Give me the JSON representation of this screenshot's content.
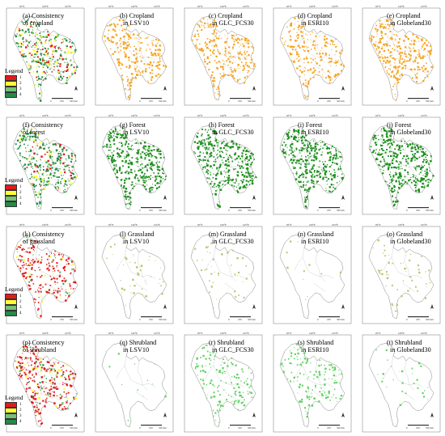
{
  "panels": [
    {
      "id": "a",
      "line1": "(a) Consistency",
      "line2": "of cropland",
      "type": "consistency",
      "class": "cropland"
    },
    {
      "id": "b",
      "line1": "(b) Cropland",
      "line2": "in LSV10",
      "type": "single",
      "class": "cropland"
    },
    {
      "id": "c",
      "line1": "(c) Cropland",
      "line2": "in GLC_FCS30",
      "type": "single",
      "class": "cropland"
    },
    {
      "id": "d",
      "line1": "(d) Cropland",
      "line2": "in ESRI10",
      "type": "single",
      "class": "cropland"
    },
    {
      "id": "e",
      "line1": "(e) Cropland",
      "line2": "in Globeland30",
      "type": "single",
      "class": "cropland"
    },
    {
      "id": "f",
      "line1": "(f) Consistency",
      "line2": "of forest",
      "type": "consistency",
      "class": "forest"
    },
    {
      "id": "g",
      "line1": "(g) Forest",
      "line2": "in LSV10",
      "type": "single",
      "class": "forest"
    },
    {
      "id": "h",
      "line1": "(h) Forest",
      "line2": "in GLC_FCS30",
      "type": "single",
      "class": "forest"
    },
    {
      "id": "i",
      "line1": "(i) Forest",
      "line2": "in ESRI10",
      "type": "single",
      "class": "forest"
    },
    {
      "id": "j",
      "line1": "(j) Forest",
      "line2": "in Globeland30",
      "type": "single",
      "class": "forest"
    },
    {
      "id": "k",
      "line1": "(k) Consistency",
      "line2": "of grassland",
      "type": "consistency",
      "class": "grassland"
    },
    {
      "id": "l",
      "line1": "(l) Grassland",
      "line2": "in LSV10",
      "type": "single",
      "class": "grassland"
    },
    {
      "id": "m",
      "line1": "(m) Grassland",
      "line2": "in GLC_FCS30",
      "type": "single",
      "class": "grassland"
    },
    {
      "id": "n",
      "line1": "(n) Grassland",
      "line2": "in ESRI10",
      "type": "single",
      "class": "grassland"
    },
    {
      "id": "o",
      "line1": "(o) Grassland",
      "line2": "in Globeland30",
      "type": "single",
      "class": "grassland"
    },
    {
      "id": "p",
      "line1": "(p) Consistency",
      "line2": "of shrubland",
      "type": "consistency",
      "class": "shrubland"
    },
    {
      "id": "q",
      "line1": "(q) Shrubland",
      "line2": "in LSV10",
      "type": "single",
      "class": "shrubland"
    },
    {
      "id": "r",
      "line1": "(r) Shrubland",
      "line2": "in GLC_FCS30",
      "type": "single",
      "class": "shrubland"
    },
    {
      "id": "s",
      "line1": "(s) Shrubland",
      "line2": "in ESRI10",
      "type": "single",
      "class": "shrubland"
    },
    {
      "id": "t",
      "line1": "(t) Shrubland",
      "line2": "in Globeland30",
      "type": "single",
      "class": "shrubland"
    }
  ],
  "density": {
    "a": 0.9,
    "b": 0.55,
    "c": 0.6,
    "d": 0.5,
    "e": 0.65,
    "f": 0.9,
    "g": 0.85,
    "h": 0.9,
    "i": 0.85,
    "j": 0.9,
    "k": 0.55,
    "l": 0.12,
    "m": 0.1,
    "n": 0.02,
    "o": 0.1,
    "p": 0.75,
    "q": 0.03,
    "r": 0.35,
    "s": 0.3,
    "t": 0.06
  },
  "legend": {
    "title": "Legend",
    "entries": [
      {
        "label": "1",
        "color": "#e31a1c"
      },
      {
        "label": "2",
        "color": "#ffff33"
      },
      {
        "label": "3",
        "color": "#74c476"
      },
      {
        "label": "4",
        "color": "#238b45"
      }
    ]
  },
  "class_colors": {
    "cropland": "#f5a623",
    "forest": "#1f8f1f",
    "grassland": "#b8c870",
    "shrubland": "#5fd35f"
  },
  "ticks": {
    "top": [
      "95°E",
      "100°E",
      "105°E"
    ]
  },
  "scale": {
    "labels": [
      "0",
      "250",
      "500 km"
    ]
  }
}
